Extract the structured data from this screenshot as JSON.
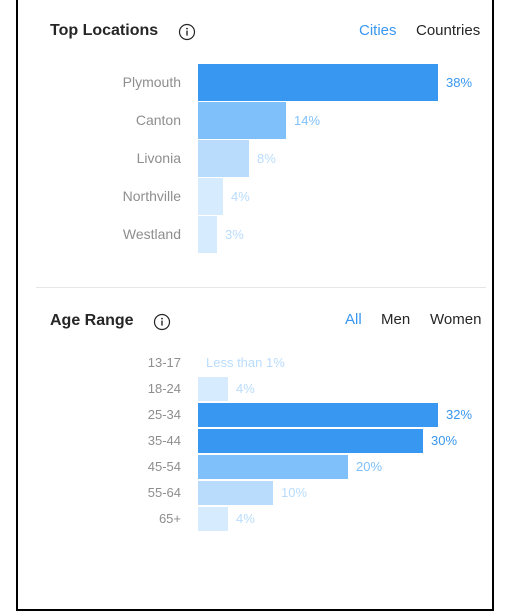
{
  "top_locations": {
    "title": "Top Locations",
    "tabs": [
      {
        "label": "Cities",
        "active": true
      },
      {
        "label": "Countries",
        "active": false
      }
    ],
    "items": [
      {
        "label": "Plymouth",
        "percent": 38,
        "percent_label": "38%"
      },
      {
        "label": "Canton",
        "percent": 14,
        "percent_label": "14%"
      },
      {
        "label": "Livonia",
        "percent": 8,
        "percent_label": "8%"
      },
      {
        "label": "Northville",
        "percent": 4,
        "percent_label": "4%"
      },
      {
        "label": "Westland",
        "percent": 3,
        "percent_label": "3%"
      }
    ]
  },
  "age_range": {
    "title": "Age Range",
    "tabs": [
      {
        "label": "All",
        "active": true
      },
      {
        "label": "Men",
        "active": false
      },
      {
        "label": "Women",
        "active": false
      }
    ],
    "items": [
      {
        "label": "13-17",
        "percent": 0,
        "percent_label": "Less than 1%"
      },
      {
        "label": "18-24",
        "percent": 4,
        "percent_label": "4%"
      },
      {
        "label": "25-34",
        "percent": 32,
        "percent_label": "32%"
      },
      {
        "label": "35-44",
        "percent": 30,
        "percent_label": "30%"
      },
      {
        "label": "45-54",
        "percent": 20,
        "percent_label": "20%"
      },
      {
        "label": "55-64",
        "percent": 10,
        "percent_label": "10%"
      },
      {
        "label": "65+",
        "percent": 4,
        "percent_label": "4%"
      }
    ]
  },
  "colors": {
    "accent": "#3897f0",
    "bar_strong": "#3897f0",
    "bar_mid": "#7fc0fb",
    "bar_light": "#b9dcfd",
    "bar_pale": "#d6ebfe",
    "muted_text": "#8e8e8e"
  },
  "icons": {
    "info": "info-circle-icon"
  }
}
